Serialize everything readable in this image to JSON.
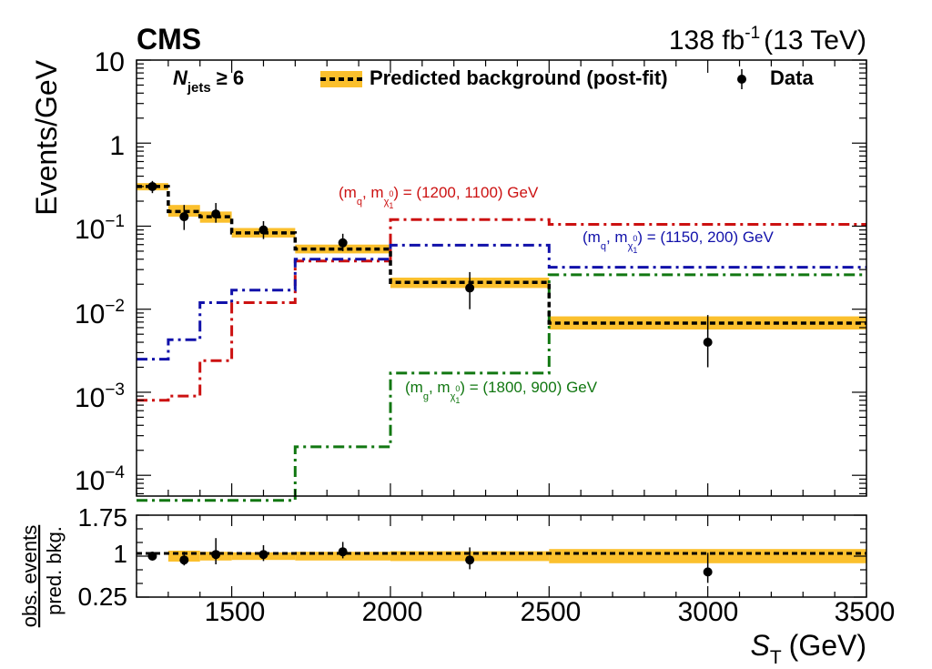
{
  "header": {
    "experiment": "CMS",
    "lumi_value": "138 fb",
    "lumi_exp": "-1",
    "energy": "(13 TeV)"
  },
  "colors": {
    "band": "#fbc02d",
    "background_line": "#000000",
    "signal_red": "#cc1111",
    "signal_blue": "#1111aa",
    "signal_green": "#117711"
  },
  "chart_data": [
    {
      "type": "line",
      "panel": "main",
      "ylabel": "Events/GeV",
      "yscale": "log",
      "ylim": [
        5e-05,
        10
      ],
      "xlim": [
        1200,
        3500
      ],
      "y_tick_labels": [
        {
          "base": "10",
          "exp": ""
        },
        {
          "base": "1",
          "exp": ""
        },
        {
          "base": "10",
          "exp": "−1"
        },
        {
          "base": "10",
          "exp": "−2"
        },
        {
          "base": "10",
          "exp": "−3"
        },
        {
          "base": "10",
          "exp": "−4"
        }
      ],
      "category_label": {
        "symbol": "N",
        "sub": "jets",
        "rel": "≥ 6"
      },
      "legend": {
        "background": "Predicted background (post-fit)",
        "data": "Data"
      },
      "bin_edges": [
        1200,
        1300,
        1400,
        1500,
        1700,
        2000,
        2500,
        3500
      ],
      "background": {
        "values": [
          0.3,
          0.15,
          0.13,
          0.083,
          0.053,
          0.021,
          0.0068
        ],
        "band_low": [
          0.27,
          0.13,
          0.11,
          0.073,
          0.047,
          0.018,
          0.0057
        ],
        "band_high": [
          0.33,
          0.18,
          0.15,
          0.095,
          0.06,
          0.024,
          0.0082
        ]
      },
      "data": {
        "x": [
          1250,
          1350,
          1450,
          1600,
          1850,
          2250,
          3000
        ],
        "y": [
          0.3,
          0.13,
          0.14,
          0.09,
          0.063,
          0.018,
          0.004
        ],
        "err_low": [
          0.05,
          0.04,
          0.03,
          0.02,
          0.013,
          0.008,
          0.002
        ],
        "err_high": [
          0.05,
          0.05,
          0.05,
          0.025,
          0.018,
          0.01,
          0.0045
        ]
      },
      "signals": [
        {
          "color_key": "signal_red",
          "values": [
            0.0008,
            0.0009,
            0.0024,
            0.012,
            0.038,
            0.12,
            0.105
          ],
          "label": {
            "prefix": "(m",
            "s1": "q",
            "mid": ", m",
            "s2": "χ",
            "s2sup": "0",
            "s2sub": "1",
            "suffix": ") = (1200, 1100) GeV"
          }
        },
        {
          "color_key": "signal_blue",
          "values": [
            0.0025,
            0.0043,
            0.012,
            0.017,
            0.04,
            0.059,
            0.032
          ],
          "label": {
            "prefix": "(m",
            "s1": "q",
            "mid": ", m",
            "s2": "χ",
            "s2sup": "0",
            "s2sub": "1",
            "suffix": ") = (1150, 200) GeV"
          }
        },
        {
          "color_key": "signal_green",
          "values": [
            5e-05,
            5e-05,
            5e-05,
            5e-05,
            0.00022,
            0.0017,
            0.026
          ],
          "label": {
            "prefix": "(m",
            "s1": "g",
            "mid": ", m",
            "s2": "χ",
            "s2sup": "0",
            "s2sub": "1",
            "suffix": ") = (1800, 900) GeV"
          }
        }
      ]
    },
    {
      "type": "line",
      "panel": "ratio",
      "ylabel_top": "obs. events",
      "ylabel_bottom": "pred. bkg.",
      "ylim": [
        0.25,
        1.75
      ],
      "y_ticks": [
        "1.75",
        "1",
        "0.25"
      ],
      "x_ticks": [
        "1500",
        "2000",
        "2500",
        "3000",
        "3500"
      ],
      "xlabel": {
        "symbol": "S",
        "sub": "T",
        "unit": "(GeV)"
      },
      "ratio": {
        "x": [
          1250,
          1350,
          1450,
          1600,
          1850,
          2250,
          3000
        ],
        "y": [
          1.0,
          0.93,
          1.03,
          1.03,
          1.08,
          0.93,
          0.71
        ],
        "err_low": [
          0.07,
          0.1,
          0.18,
          0.12,
          0.12,
          0.17,
          0.2
        ],
        "err_high": [
          0.07,
          0.15,
          0.3,
          0.17,
          0.18,
          0.23,
          0.35
        ]
      },
      "band_half_width": [
        0.03,
        0.1,
        0.08,
        0.07,
        0.08,
        0.09,
        0.13
      ]
    }
  ]
}
